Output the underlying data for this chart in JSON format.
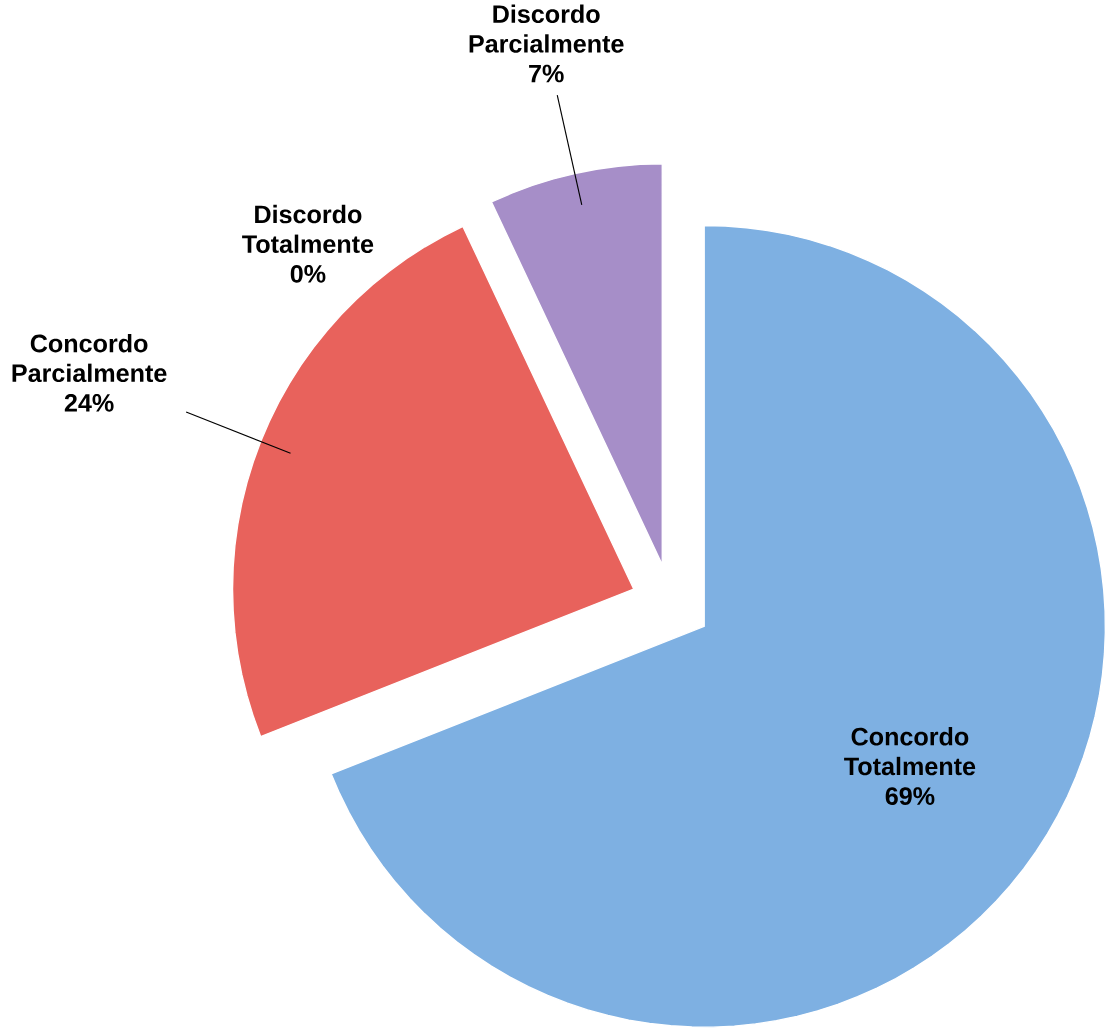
{
  "chart_data": {
    "type": "pie",
    "categories": [
      "Concordo Totalmente",
      "Concordo Parcialmente",
      "Discordo Totalmente",
      "Discordo Parcialmente"
    ],
    "values": [
      69,
      24,
      0,
      7
    ],
    "value_labels": [
      "69%",
      "24%",
      "0%",
      "7%"
    ],
    "colors": [
      "#7eb0e2",
      "#e8625c",
      "#b0a0d0",
      "#a68ec8"
    ]
  }
}
